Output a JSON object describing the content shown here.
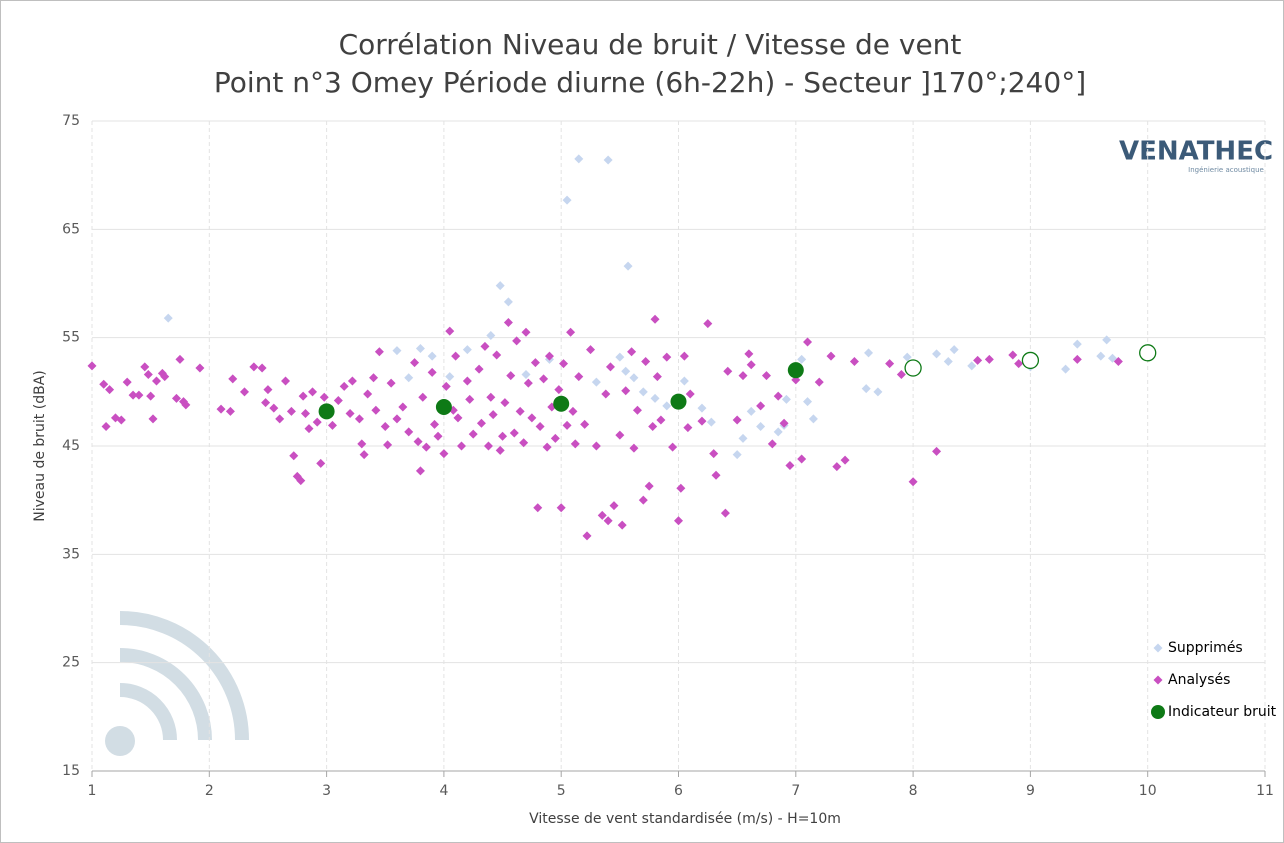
{
  "chart_data": {
    "type": "scatter",
    "title": "Corrélation Niveau de bruit / Vitesse de vent",
    "subtitle": "Point n°3 Omey Période diurne (6h-22h) - Secteur ]170°;240°]",
    "x_label": "Vitesse de vent standardisée (m/s) - H=10m",
    "y_label": "Niveau de bruit (dBA)",
    "xlim": [
      1,
      11
    ],
    "xticks": [
      1,
      2,
      3,
      4,
      5,
      6,
      7,
      8,
      9,
      10,
      11
    ],
    "ylim": [
      15,
      75
    ],
    "yticks": [
      15,
      25,
      35,
      45,
      55,
      65,
      75
    ],
    "grid": true,
    "legend": "lower right",
    "logo": {
      "name": "VENATHEC",
      "tagline": "Ingénierie acoustique"
    },
    "series": [
      {
        "name": "Supprimés",
        "color": "#c6d6ef",
        "marker": "diamond",
        "x": [
          1.65,
          3.6,
          3.7,
          3.8,
          3.9,
          4.05,
          4.2,
          4.4,
          4.48,
          4.55,
          4.7,
          4.9,
          5.05,
          5.15,
          5.3,
          5.4,
          5.5,
          5.55,
          5.57,
          5.62,
          5.7,
          5.8,
          5.9,
          6.05,
          6.2,
          6.28,
          6.5,
          6.55,
          6.62,
          6.7,
          6.85,
          6.9,
          6.92,
          7.05,
          7.1,
          7.15,
          7.6,
          7.7,
          7.62,
          7.95,
          8.2,
          8.3,
          8.35,
          8.5,
          9.0,
          9.3,
          9.4,
          9.6,
          9.65,
          9.7
        ],
        "values": [
          56.8,
          53.8,
          51.3,
          54.0,
          53.3,
          51.4,
          53.9,
          55.2,
          59.8,
          58.3,
          51.6,
          53.0,
          67.7,
          71.5,
          50.9,
          71.4,
          53.2,
          51.9,
          61.6,
          51.3,
          50.0,
          49.4,
          48.7,
          51.0,
          48.5,
          47.2,
          44.2,
          45.7,
          48.2,
          46.8,
          46.3,
          46.9,
          49.3,
          53.0,
          49.1,
          47.5,
          50.3,
          50.0,
          53.6,
          53.2,
          53.5,
          52.8,
          53.9,
          52.4,
          52.3,
          52.1,
          54.4,
          53.3,
          54.8,
          53.1
        ]
      },
      {
        "name": "Analysés",
        "color": "#c94fc1",
        "marker": "diamond",
        "x": [
          1.0,
          1.1,
          1.12,
          1.15,
          1.2,
          1.25,
          1.3,
          1.35,
          1.4,
          1.45,
          1.48,
          1.5,
          1.52,
          1.55,
          1.6,
          1.62,
          1.72,
          1.75,
          1.78,
          1.8,
          1.92,
          2.1,
          2.18,
          2.2,
          2.3,
          2.38,
          2.45,
          2.48,
          2.5,
          2.55,
          2.6,
          2.65,
          2.7,
          2.72,
          2.75,
          2.78,
          2.8,
          2.82,
          2.85,
          2.88,
          2.92,
          2.95,
          2.98,
          3.05,
          3.1,
          3.15,
          3.2,
          3.22,
          3.28,
          3.3,
          3.32,
          3.35,
          3.4,
          3.42,
          3.45,
          3.5,
          3.52,
          3.55,
          3.6,
          3.65,
          3.7,
          3.75,
          3.78,
          3.8,
          3.82,
          3.85,
          3.9,
          3.92,
          3.95,
          4.0,
          4.02,
          4.05,
          4.08,
          4.1,
          4.12,
          4.15,
          4.2,
          4.22,
          4.25,
          4.3,
          4.32,
          4.35,
          4.38,
          4.4,
          4.42,
          4.45,
          4.48,
          4.5,
          4.52,
          4.55,
          4.57,
          4.6,
          4.62,
          4.65,
          4.68,
          4.7,
          4.72,
          4.75,
          4.78,
          4.8,
          4.82,
          4.85,
          4.88,
          4.9,
          4.92,
          4.95,
          4.98,
          5.0,
          5.02,
          5.05,
          5.08,
          5.1,
          5.12,
          5.15,
          5.2,
          5.22,
          5.25,
          5.3,
          5.35,
          5.38,
          5.4,
          5.42,
          5.45,
          5.5,
          5.52,
          5.55,
          5.6,
          5.62,
          5.65,
          5.7,
          5.72,
          5.75,
          5.78,
          5.8,
          5.82,
          5.85,
          5.9,
          5.95,
          6.0,
          6.02,
          6.05,
          6.08,
          6.1,
          6.2,
          6.25,
          6.3,
          6.32,
          6.4,
          6.42,
          6.5,
          6.55,
          6.6,
          6.62,
          6.7,
          6.75,
          6.8,
          6.85,
          6.9,
          6.95,
          7.0,
          7.05,
          7.1,
          7.2,
          7.3,
          7.35,
          7.42,
          7.5,
          7.8,
          7.9,
          8.0,
          8.2,
          8.55,
          8.65,
          8.85,
          8.9,
          9.4,
          9.75
        ],
        "values": [
          52.4,
          50.7,
          46.8,
          50.2,
          47.6,
          47.4,
          50.9,
          49.7,
          49.7,
          52.3,
          51.6,
          49.6,
          47.5,
          51.0,
          51.7,
          51.4,
          49.4,
          53.0,
          49.1,
          48.8,
          52.2,
          48.4,
          48.2,
          51.2,
          50.0,
          52.3,
          52.2,
          49.0,
          50.2,
          48.5,
          47.5,
          51.0,
          48.2,
          44.1,
          42.2,
          41.8,
          49.6,
          48.0,
          46.6,
          50.0,
          47.2,
          43.4,
          49.5,
          46.9,
          49.2,
          50.5,
          48.0,
          51.0,
          47.5,
          45.2,
          44.2,
          49.8,
          51.3,
          48.3,
          53.7,
          46.8,
          45.1,
          50.8,
          47.5,
          48.6,
          46.3,
          52.7,
          45.4,
          42.7,
          49.5,
          44.9,
          51.8,
          47.0,
          45.9,
          44.3,
          50.5,
          55.6,
          48.3,
          53.3,
          47.6,
          45.0,
          51.0,
          49.3,
          46.1,
          52.1,
          47.1,
          54.2,
          45.0,
          49.5,
          47.9,
          53.4,
          44.6,
          45.9,
          49.0,
          56.4,
          51.5,
          46.2,
          54.7,
          48.2,
          45.3,
          55.5,
          50.8,
          47.6,
          52.7,
          39.3,
          46.8,
          51.2,
          44.9,
          53.3,
          48.6,
          45.7,
          50.2,
          39.3,
          52.6,
          46.9,
          55.5,
          48.2,
          45.2,
          51.4,
          47.0,
          36.7,
          53.9,
          45.0,
          38.6,
          49.8,
          38.1,
          52.3,
          39.5,
          46.0,
          37.7,
          50.1,
          53.7,
          44.8,
          48.3,
          40.0,
          52.8,
          41.3,
          46.8,
          56.7,
          51.4,
          47.4,
          53.2,
          44.9,
          38.1,
          41.1,
          53.3,
          46.7,
          49.8,
          47.3,
          56.3,
          44.3,
          42.3,
          38.8,
          51.9,
          47.4,
          51.5,
          53.5,
          52.5,
          48.7,
          51.5,
          45.2,
          49.6,
          47.1,
          43.2,
          51.1,
          43.8,
          54.6,
          50.9,
          53.3,
          43.1,
          43.7,
          52.8,
          52.6,
          51.6,
          41.7,
          44.5,
          52.9,
          53.0,
          53.4,
          52.6,
          53.0,
          52.8
        ]
      },
      {
        "name": "Indicateur bruit",
        "color": "#0e7a16",
        "marker": "circle",
        "x": [
          3,
          4,
          5,
          6,
          7,
          8,
          9,
          10
        ],
        "values": [
          48.2,
          48.6,
          48.9,
          49.1,
          52.0,
          52.2,
          52.9,
          53.6
        ],
        "filled": [
          true,
          true,
          true,
          true,
          true,
          false,
          false,
          false
        ]
      }
    ]
  }
}
